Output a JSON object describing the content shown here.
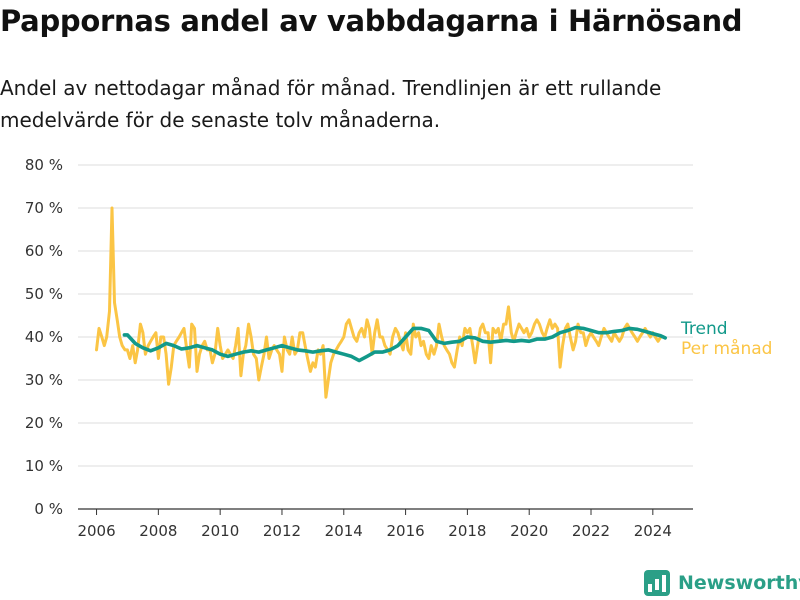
{
  "title": "Pappornas andel av vabbdagarna i Härnösand",
  "subtitle": "Andel av nettodagar månad för månad. Trendlinjen är ett rullande medelvärde för de senaste tolv månaderna.",
  "brand": {
    "name": "Newsworthy"
  },
  "colors": {
    "trend": "#12998a",
    "monthly": "#fbc545",
    "grid": "#dcdcdc",
    "axis": "#333333",
    "brand": "#2b9f87"
  },
  "chart_data": {
    "type": "line",
    "title": "",
    "xlabel": "",
    "ylabel": "",
    "xlim": [
      2005.4,
      2025.3
    ],
    "ylim": [
      0,
      80
    ],
    "grid": true,
    "y_ticks": [
      0,
      10,
      20,
      30,
      40,
      50,
      60,
      70,
      80
    ],
    "y_tick_labels": [
      "0 %",
      "10 %",
      "20 %",
      "30 %",
      "40 %",
      "50 %",
      "60 %",
      "70 %",
      "80 %"
    ],
    "x_ticks": [
      2006,
      2008,
      2010,
      2012,
      2014,
      2016,
      2018,
      2020,
      2022,
      2024
    ],
    "x_tick_labels": [
      "2006",
      "2008",
      "2010",
      "2012",
      "2014",
      "2016",
      "2018",
      "2020",
      "2022",
      "2024"
    ],
    "series": [
      {
        "name": "Per månad",
        "color": "#fbc545",
        "x": [
          2006.0,
          2006.08,
          2006.17,
          2006.25,
          2006.33,
          2006.42,
          2006.5,
          2006.58,
          2006.67,
          2006.75,
          2006.83,
          2006.92,
          2007.0,
          2007.08,
          2007.17,
          2007.25,
          2007.33,
          2007.42,
          2007.5,
          2007.58,
          2007.67,
          2007.75,
          2007.83,
          2007.92,
          2008.0,
          2008.08,
          2008.17,
          2008.25,
          2008.33,
          2008.42,
          2008.5,
          2008.58,
          2008.67,
          2008.75,
          2008.83,
          2008.92,
          2009.0,
          2009.08,
          2009.17,
          2009.25,
          2009.33,
          2009.42,
          2009.5,
          2009.58,
          2009.67,
          2009.75,
          2009.83,
          2009.92,
          2010.0,
          2010.08,
          2010.17,
          2010.25,
          2010.33,
          2010.42,
          2010.5,
          2010.58,
          2010.67,
          2010.75,
          2010.83,
          2010.92,
          2011.0,
          2011.08,
          2011.17,
          2011.25,
          2011.33,
          2011.42,
          2011.5,
          2011.58,
          2011.67,
          2011.75,
          2011.83,
          2011.92,
          2012.0,
          2012.08,
          2012.17,
          2012.25,
          2012.33,
          2012.42,
          2012.5,
          2012.58,
          2012.67,
          2012.75,
          2012.83,
          2012.92,
          2013.0,
          2013.08,
          2013.17,
          2013.25,
          2013.33,
          2013.42,
          2013.5,
          2013.58,
          2013.67,
          2013.75,
          2013.83,
          2013.92,
          2014.0,
          2014.08,
          2014.17,
          2014.25,
          2014.33,
          2014.42,
          2014.5,
          2014.58,
          2014.67,
          2014.75,
          2014.83,
          2014.92,
          2015.0,
          2015.08,
          2015.17,
          2015.25,
          2015.33,
          2015.42,
          2015.5,
          2015.58,
          2015.67,
          2015.75,
          2015.83,
          2015.92,
          2016.0,
          2016.08,
          2016.17,
          2016.25,
          2016.33,
          2016.42,
          2016.5,
          2016.58,
          2016.67,
          2016.75,
          2016.83,
          2016.92,
          2017.0,
          2017.08,
          2017.17,
          2017.25,
          2017.33,
          2017.42,
          2017.5,
          2017.58,
          2017.67,
          2017.75,
          2017.83,
          2017.92,
          2018.0,
          2018.08,
          2018.17,
          2018.25,
          2018.33,
          2018.42,
          2018.5,
          2018.58,
          2018.67,
          2018.75,
          2018.83,
          2018.92,
          2019.0,
          2019.08,
          2019.17,
          2019.25,
          2019.33,
          2019.42,
          2019.5,
          2019.58,
          2019.67,
          2019.75,
          2019.83,
          2019.92,
          2020.0,
          2020.08,
          2020.17,
          2020.25,
          2020.33,
          2020.42,
          2020.5,
          2020.58,
          2020.67,
          2020.75,
          2020.83,
          2020.92,
          2021.0,
          2021.08,
          2021.17,
          2021.25,
          2021.33,
          2021.42,
          2021.5,
          2021.58,
          2021.67,
          2021.75,
          2021.83,
          2021.92,
          2022.0,
          2022.08,
          2022.17,
          2022.25,
          2022.33,
          2022.42,
          2022.5,
          2022.58,
          2022.67,
          2022.75,
          2022.83,
          2022.92,
          2023.0,
          2023.08,
          2023.17,
          2023.25,
          2023.33,
          2023.42,
          2023.5,
          2023.58,
          2023.67,
          2023.75,
          2023.83,
          2023.92,
          2024.0,
          2024.08,
          2024.17,
          2024.25,
          2024.33
        ],
        "values": [
          37,
          42,
          40,
          38,
          40,
          46,
          70,
          48,
          44,
          40,
          38,
          37,
          37,
          35,
          38,
          34,
          37,
          43,
          41,
          36,
          38,
          39,
          40,
          41,
          35,
          40,
          40,
          36,
          29,
          33,
          38,
          39,
          40,
          41,
          42,
          37,
          33,
          43,
          42,
          32,
          36,
          38,
          39,
          37,
          37,
          34,
          36,
          42,
          38,
          35,
          36,
          37,
          36,
          35,
          38,
          42,
          31,
          36,
          38,
          43,
          40,
          36,
          35,
          30,
          33,
          36,
          40,
          35,
          37,
          38,
          37,
          36,
          32,
          40,
          37,
          36,
          40,
          36,
          37,
          41,
          41,
          38,
          35,
          32,
          34,
          33,
          37,
          36,
          38,
          26,
          30,
          34,
          36,
          37,
          38,
          39,
          40,
          43,
          44,
          42,
          40,
          39,
          41,
          42,
          40,
          44,
          42,
          36,
          41,
          44,
          40,
          40,
          38,
          37,
          36,
          40,
          42,
          41,
          39,
          37,
          41,
          37,
          36,
          43,
          40,
          41,
          38,
          39,
          36,
          35,
          38,
          36,
          38,
          43,
          40,
          38,
          37,
          36,
          34,
          33,
          37,
          40,
          38,
          42,
          41,
          42,
          38,
          34,
          38,
          42,
          43,
          41,
          41,
          34,
          42,
          41,
          42,
          39,
          43,
          43,
          47,
          41,
          39,
          41,
          43,
          42,
          41,
          42,
          40,
          41,
          43,
          44,
          43,
          41,
          40,
          42,
          44,
          42,
          43,
          42,
          33,
          38,
          42,
          43,
          40,
          37,
          39,
          43,
          41,
          41,
          38,
          40,
          41,
          40,
          39,
          38,
          40,
          42,
          41,
          40,
          39,
          41,
          40,
          39,
          40,
          42,
          43,
          42,
          41,
          40,
          39,
          40,
          41,
          42,
          41,
          40,
          41,
          40,
          39,
          40,
          40
        ],
        "values_note": ""
      },
      {
        "name": "Trend",
        "color": "#12998a",
        "x": [
          2006.9,
          2007.0,
          2007.25,
          2007.5,
          2007.75,
          2008.0,
          2008.25,
          2008.5,
          2008.75,
          2009.0,
          2009.25,
          2009.5,
          2009.75,
          2010.0,
          2010.25,
          2010.5,
          2010.75,
          2011.0,
          2011.25,
          2011.5,
          2011.75,
          2012.0,
          2012.25,
          2012.5,
          2012.75,
          2013.0,
          2013.25,
          2013.5,
          2013.75,
          2014.0,
          2014.25,
          2014.5,
          2014.75,
          2015.0,
          2015.25,
          2015.5,
          2015.75,
          2016.0,
          2016.25,
          2016.5,
          2016.75,
          2017.0,
          2017.25,
          2017.5,
          2017.75,
          2018.0,
          2018.25,
          2018.5,
          2018.75,
          2019.0,
          2019.25,
          2019.5,
          2019.75,
          2020.0,
          2020.25,
          2020.5,
          2020.75,
          2021.0,
          2021.25,
          2021.5,
          2021.75,
          2022.0,
          2022.25,
          2022.5,
          2022.75,
          2023.0,
          2023.25,
          2023.5,
          2023.75,
          2024.0,
          2024.25,
          2024.4
        ],
        "values": [
          40.5,
          40.5,
          38.5,
          37.5,
          36.8,
          37.5,
          38.5,
          38.0,
          37.2,
          37.5,
          38.0,
          37.5,
          37.0,
          36.0,
          35.5,
          36.0,
          36.5,
          36.8,
          36.5,
          37.0,
          37.5,
          38.0,
          37.5,
          37.0,
          36.8,
          36.5,
          36.8,
          37.0,
          36.5,
          36.0,
          35.5,
          34.5,
          35.5,
          36.5,
          36.5,
          37.0,
          38.0,
          40.0,
          42.0,
          42.0,
          41.5,
          39.0,
          38.5,
          38.8,
          39.0,
          40.0,
          39.8,
          39.0,
          38.8,
          39.0,
          39.2,
          39.0,
          39.2,
          39.0,
          39.5,
          39.5,
          40.0,
          41.0,
          41.5,
          42.2,
          42.0,
          41.5,
          41.0,
          41.0,
          41.3,
          41.5,
          42.0,
          41.8,
          41.3,
          40.8,
          40.3,
          39.8
        ]
      }
    ],
    "legend": "right-end-labels"
  }
}
